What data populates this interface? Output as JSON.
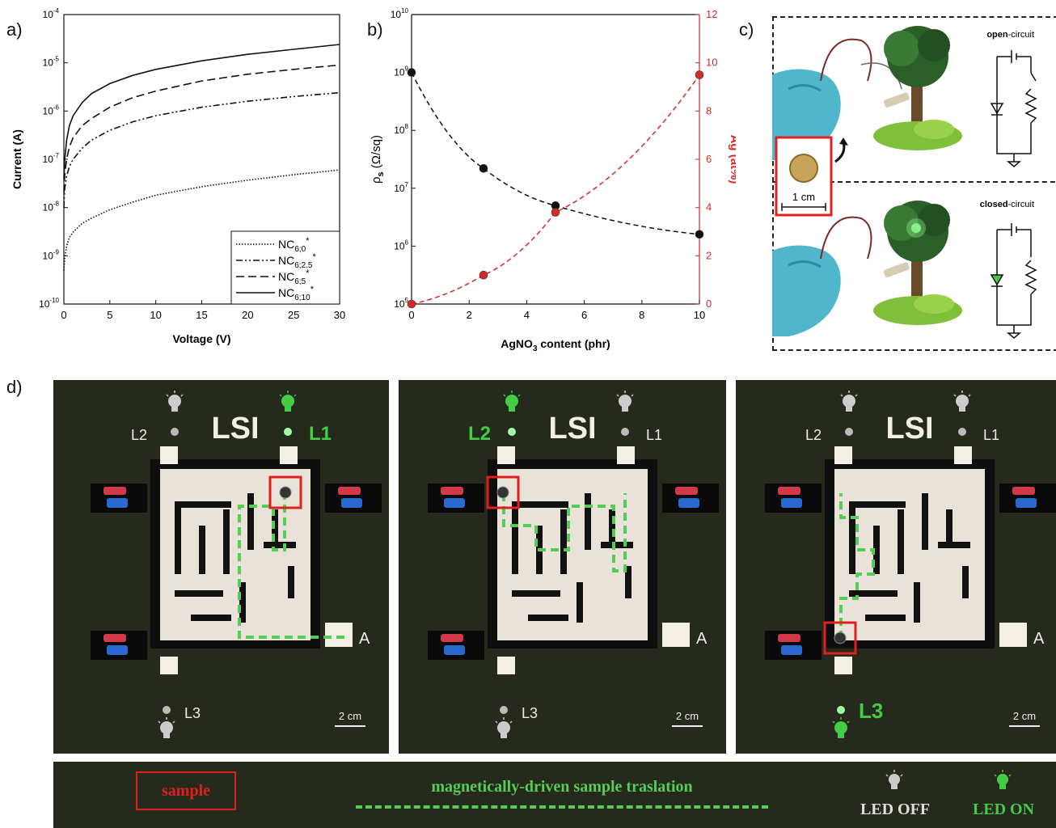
{
  "panels": {
    "a": {
      "label": "a)"
    },
    "b": {
      "label": "b)"
    },
    "c": {
      "label": "c)"
    },
    "d": {
      "label": "d)"
    }
  },
  "chart_data": [
    {
      "type": "line",
      "panel": "a",
      "xlabel": "Voltage (V)",
      "ylabel": "Current (A)",
      "xlim": [
        0,
        30
      ],
      "ylim": [
        1e-10,
        0.0001
      ],
      "yscale": "log",
      "xticks": [
        "0",
        "5",
        "10",
        "15",
        "20",
        "25",
        "30"
      ],
      "yticks_exp": [
        "-10",
        "-9",
        "-8",
        "-7",
        "-6",
        "-5",
        "-4"
      ],
      "ytick_base": "10",
      "legend_position": "bottom-right",
      "series": [
        {
          "name": "NC",
          "sub": "6;0",
          "sup": "*",
          "style": "dotted",
          "x": [
            0,
            0.1,
            0.3,
            0.6,
            1,
            2,
            3,
            5,
            7.5,
            10,
            15,
            20,
            25,
            30
          ],
          "y": [
            5e-10,
            9e-10,
            1.6e-09,
            2.4e-09,
            3.1e-09,
            4.7e-09,
            6e-09,
            9e-09,
            1.3e-08,
            1.8e-08,
            2.7e-08,
            3.7e-08,
            4.8e-08,
            6e-08
          ]
        },
        {
          "name": "NC",
          "sub": "6;2.5",
          "sup": "*",
          "style": "dashdotdot",
          "x": [
            0,
            0.1,
            0.3,
            0.6,
            1,
            2,
            3,
            5,
            7.5,
            10,
            15,
            20,
            25,
            30
          ],
          "y": [
            1e-08,
            2.5e-08,
            4.5e-08,
            7e-08,
            1e-07,
            1.7e-07,
            2.5e-07,
            4e-07,
            6e-07,
            8e-07,
            1.2e-06,
            1.6e-06,
            2e-06,
            2.4e-06
          ]
        },
        {
          "name": "NC",
          "sub": "6;5",
          "sup": "*",
          "style": "dashed",
          "x": [
            0,
            0.1,
            0.3,
            0.6,
            1,
            2,
            3,
            5,
            7.5,
            10,
            15,
            20,
            25,
            30
          ],
          "y": [
            2e-08,
            5e-08,
            1e-07,
            1.8e-07,
            2.8e-07,
            5e-07,
            7e-07,
            1.2e-06,
            1.9e-06,
            2.6e-06,
            4.2e-06,
            5.8e-06,
            7.3e-06,
            9e-06
          ]
        },
        {
          "name": "NC",
          "sub": "6;10",
          "sup": "*",
          "style": "solid",
          "x": [
            0,
            0.1,
            0.3,
            0.6,
            1,
            2,
            3,
            5,
            7.5,
            10,
            15,
            20,
            25,
            30
          ],
          "y": [
            4e-08,
            1e-07,
            2.5e-07,
            5e-07,
            8e-07,
            1.5e-06,
            2.3e-06,
            3.7e-06,
            5.5e-06,
            7.3e-06,
            1.1e-05,
            1.5e-05,
            1.9e-05,
            2.4e-05
          ]
        }
      ]
    },
    {
      "type": "scatter",
      "panel": "b",
      "xlabel": "AgNO",
      "xlabel_sub": "3",
      "xlabel_rest": " content (phr)",
      "ylabel_left": "ρ",
      "ylabel_left_sub": "s",
      "ylabel_left_rest": " (Ω/sq)",
      "ylabel_right": "Ag (at%)",
      "xlim": [
        0,
        10
      ],
      "ylim_left": [
        100000.0,
        10000000000.0
      ],
      "yscale_left": "log",
      "ylim_right": [
        0,
        12
      ],
      "xticks": [
        "0",
        "2",
        "4",
        "6",
        "8",
        "10"
      ],
      "yticks_left_exp": [
        "5",
        "6",
        "7",
        "8",
        "9",
        "10"
      ],
      "ytick_base": "10",
      "yticks_right": [
        "0",
        "2",
        "4",
        "6",
        "8",
        "10",
        "12"
      ],
      "series": [
        {
          "name": "",
          "axis": "left",
          "color": "#111111",
          "x": [
            0,
            2.5,
            5,
            10
          ],
          "y": [
            1000000000.0,
            22000000.0,
            5000000.0,
            1600000.0
          ]
        },
        {
          "name": "",
          "axis": "right",
          "color": "#d42a2a",
          "x": [
            0,
            2.5,
            5,
            10
          ],
          "y": [
            0,
            1.2,
            3.8,
            9.5
          ]
        }
      ]
    }
  ],
  "panel_c": {
    "open_label_bold": "open",
    "open_label_rest": "-circuit",
    "closed_label_bold": "closed",
    "closed_label_rest": "-circuit",
    "scale": "1 cm"
  },
  "panel_d": {
    "logo": "LSI",
    "frames": [
      {
        "l1": "L1",
        "l2": "L2",
        "l3": "L3",
        "a": "A",
        "scale": "2 cm",
        "lit": "L1"
      },
      {
        "l1": "L1",
        "l2": "L2",
        "l3": "L3",
        "a": "A",
        "scale": "2 cm",
        "lit": "L2"
      },
      {
        "l1": "L1",
        "l2": "L2",
        "l3": "L3",
        "a": "A",
        "scale": "2 cm",
        "lit": "L3"
      }
    ],
    "legend": {
      "sample": "sample",
      "path": "magnetically-driven sample traslation",
      "led_off": "LED OFF",
      "led_on": "LED ON"
    },
    "colors": {
      "led_on": "#44cc44",
      "led_off": "#cccccc",
      "sample_box": "#e02020",
      "path": "#55cc55"
    }
  }
}
